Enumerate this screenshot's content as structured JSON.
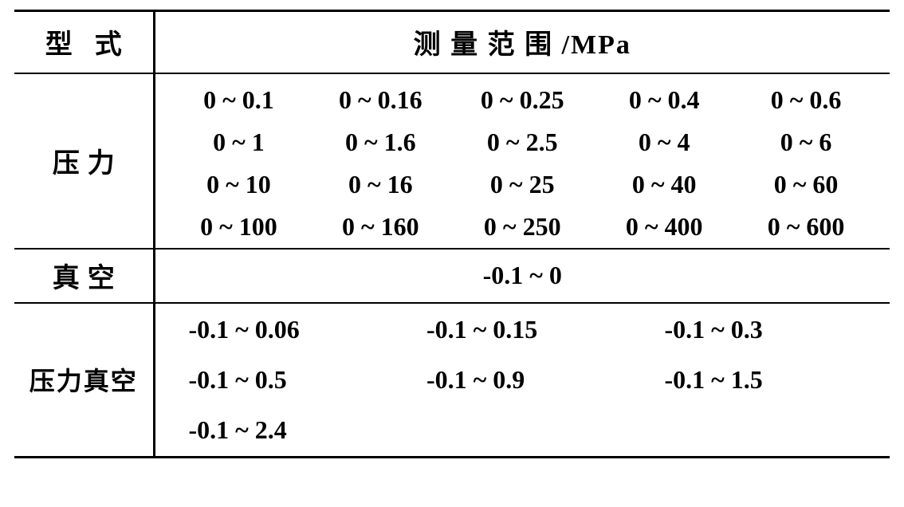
{
  "header": {
    "type_col": "型式",
    "range_col": "测 量 范 围 /MPa"
  },
  "rows": {
    "pressure": {
      "label": "压力",
      "values": [
        "0 ~ 0.1",
        "0 ~ 0.16",
        "0 ~ 0.25",
        "0 ~ 0.4",
        "0 ~ 0.6",
        "0 ~ 1",
        "0 ~ 1.6",
        "0 ~ 2.5",
        "0 ~ 4",
        "0 ~ 6",
        "0 ~ 10",
        "0 ~ 16",
        "0 ~ 25",
        "0 ~ 40",
        "0 ~ 60",
        "0 ~ 100",
        "0 ~ 160",
        "0 ~ 250",
        "0 ~ 400",
        "0 ~ 600"
      ]
    },
    "vacuum": {
      "label": "真空",
      "value": "-0.1 ~ 0"
    },
    "pressure_vacuum": {
      "label": "压力真空",
      "values": [
        "-0.1 ~ 0.06",
        "-0.1 ~ 0.15",
        "-0.1 ~ 0.3",
        "-0.1 ~ 0.5",
        "-0.1 ~ 0.9",
        "-0.1 ~ 1.5",
        "-0.1 ~ 2.4"
      ]
    }
  },
  "style": {
    "border_color": "#000000",
    "background_color": "#ffffff",
    "text_color": "#000000",
    "header_fontsize": 34,
    "cell_fontsize": 32,
    "font_family_cn": "SimSun",
    "font_family_num": "Times New Roman",
    "outer_border_width": 3,
    "inner_border_width": 2
  }
}
